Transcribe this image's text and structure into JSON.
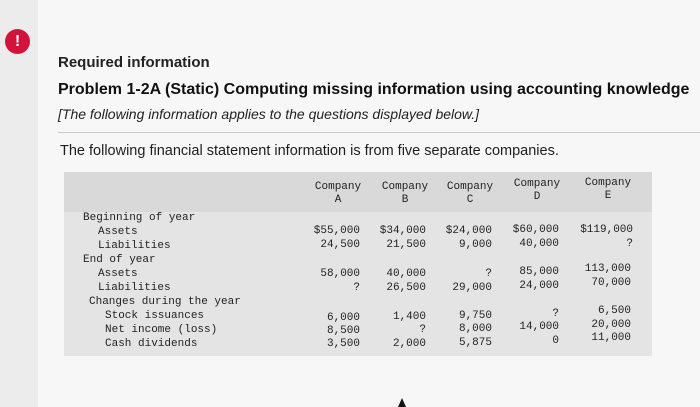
{
  "alert_symbol": "!",
  "required_info": "Required information",
  "problem_title": "Problem 1-2A (Static) Computing missing information using accounting knowledge",
  "note": "[The following information applies to the questions displayed below.]",
  "intro": "The following financial statement information is from five separate companies.",
  "table": {
    "headers": [
      {
        "line1": "Company",
        "line2": "A"
      },
      {
        "line1": "Company",
        "line2": "B"
      },
      {
        "line1": "Company",
        "line2": "C"
      },
      {
        "line1": "Company",
        "line2": "D"
      },
      {
        "line1": "Company",
        "line2": "E"
      }
    ],
    "sections": {
      "beginning": "Beginning of year",
      "end": "End of year",
      "changes": "Changes during the year"
    },
    "rows": {
      "begin_assets": {
        "label": "Assets",
        "values": [
          "$55,000",
          "$34,000",
          "$24,000",
          "$60,000",
          "$119,000"
        ]
      },
      "begin_liabilities": {
        "label": "Liabilities",
        "values": [
          "24,500",
          "21,500",
          "9,000",
          "40,000",
          "?"
        ]
      },
      "end_assets": {
        "label": "Assets",
        "values": [
          "58,000",
          "40,000",
          "?",
          "85,000",
          "113,000"
        ]
      },
      "end_liabilities": {
        "label": "Liabilities",
        "values": [
          "?",
          "26,500",
          "29,000",
          "24,000",
          "70,000"
        ]
      },
      "stock_issuances": {
        "label": "Stock issuances",
        "values": [
          "6,000",
          "1,400",
          "9,750",
          "?",
          "6,500"
        ]
      },
      "net_income": {
        "label": "Net income (loss)",
        "values": [
          "8,500",
          "?",
          "8,000",
          "14,000",
          "20,000"
        ]
      },
      "cash_dividends": {
        "label": "Cash dividends",
        "values": [
          "3,500",
          "2,000",
          "5,875",
          "0",
          "11,000"
        ]
      }
    }
  }
}
